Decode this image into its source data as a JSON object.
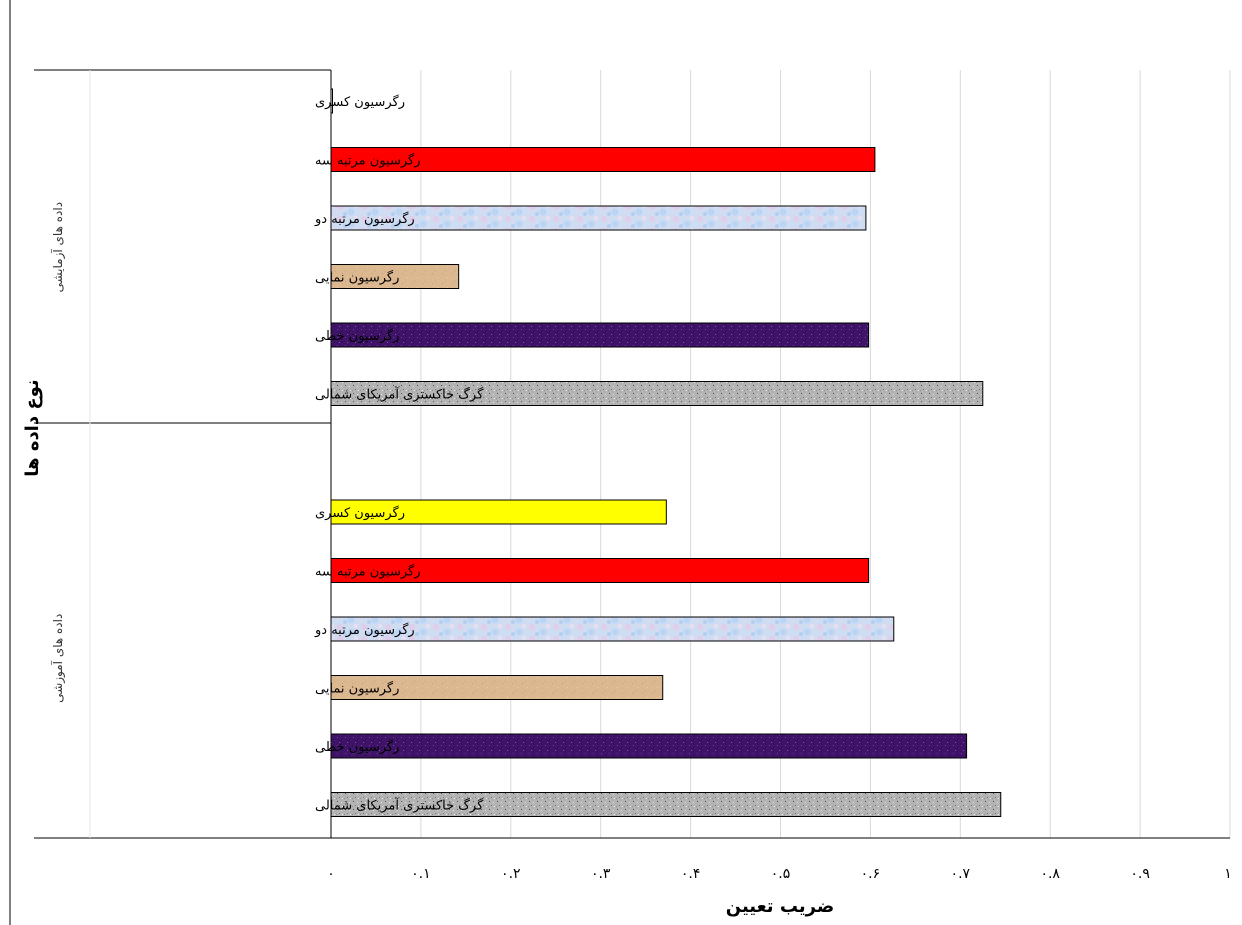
{
  "chart_data": {
    "type": "bar",
    "orientation": "horizontal",
    "xlabel": "ضریب تعیین",
    "ylabel": "نوع داده ها",
    "xlim": [
      0,
      1
    ],
    "x_ticks": [
      "۰",
      "۰.۱",
      "۰.۲",
      "۰.۳",
      "۰.۴",
      "۰.۵",
      "۰.۶",
      "۰.۷",
      "۰.۸",
      "۰.۹",
      "۱"
    ],
    "grid": "vertical",
    "groups": [
      {
        "name": "داده های آزمایشی",
        "bars": [
          {
            "label": "رگرسیون کسری",
            "value": 0.0,
            "color": "#ffffff",
            "pattern": "none"
          },
          {
            "label": "رگرسیون مرتبه سه",
            "value": 0.605,
            "color": "#ff0000",
            "pattern": "none"
          },
          {
            "label": "رگرسیون مرتبه دو",
            "value": 0.595,
            "color": "#c9daf3",
            "pattern": "marble"
          },
          {
            "label": "رگرسیون نمایی",
            "value": 0.142,
            "color": "#dcb891",
            "pattern": "paper"
          },
          {
            "label": "رگرسیون خطی",
            "value": 0.598,
            "color": "#4a1b7a",
            "pattern": "granite"
          },
          {
            "label": "گرگ خاکستری آمریکای شمالی",
            "value": 0.725,
            "color": "#b0b0b0",
            "pattern": "granite"
          }
        ]
      },
      {
        "name": "داده های آموزشی",
        "bars": [
          {
            "label": "رگرسیون کسری",
            "value": 0.373,
            "color": "#ffff00",
            "pattern": "none"
          },
          {
            "label": "رگرسیون مرتبه سه",
            "value": 0.598,
            "color": "#ff0000",
            "pattern": "none"
          },
          {
            "label": "رگرسیون مرتبه دو",
            "value": 0.626,
            "color": "#c9daf3",
            "pattern": "marble"
          },
          {
            "label": "رگرسیون نمایی",
            "value": 0.369,
            "color": "#dcb891",
            "pattern": "paper"
          },
          {
            "label": "رگرسیون خطی",
            "value": 0.707,
            "color": "#4a1b7a",
            "pattern": "granite"
          },
          {
            "label": "گرگ خاکستری آمریکای شمالی",
            "value": 0.745,
            "color": "#b0b0b0",
            "pattern": "granite"
          }
        ]
      }
    ]
  }
}
